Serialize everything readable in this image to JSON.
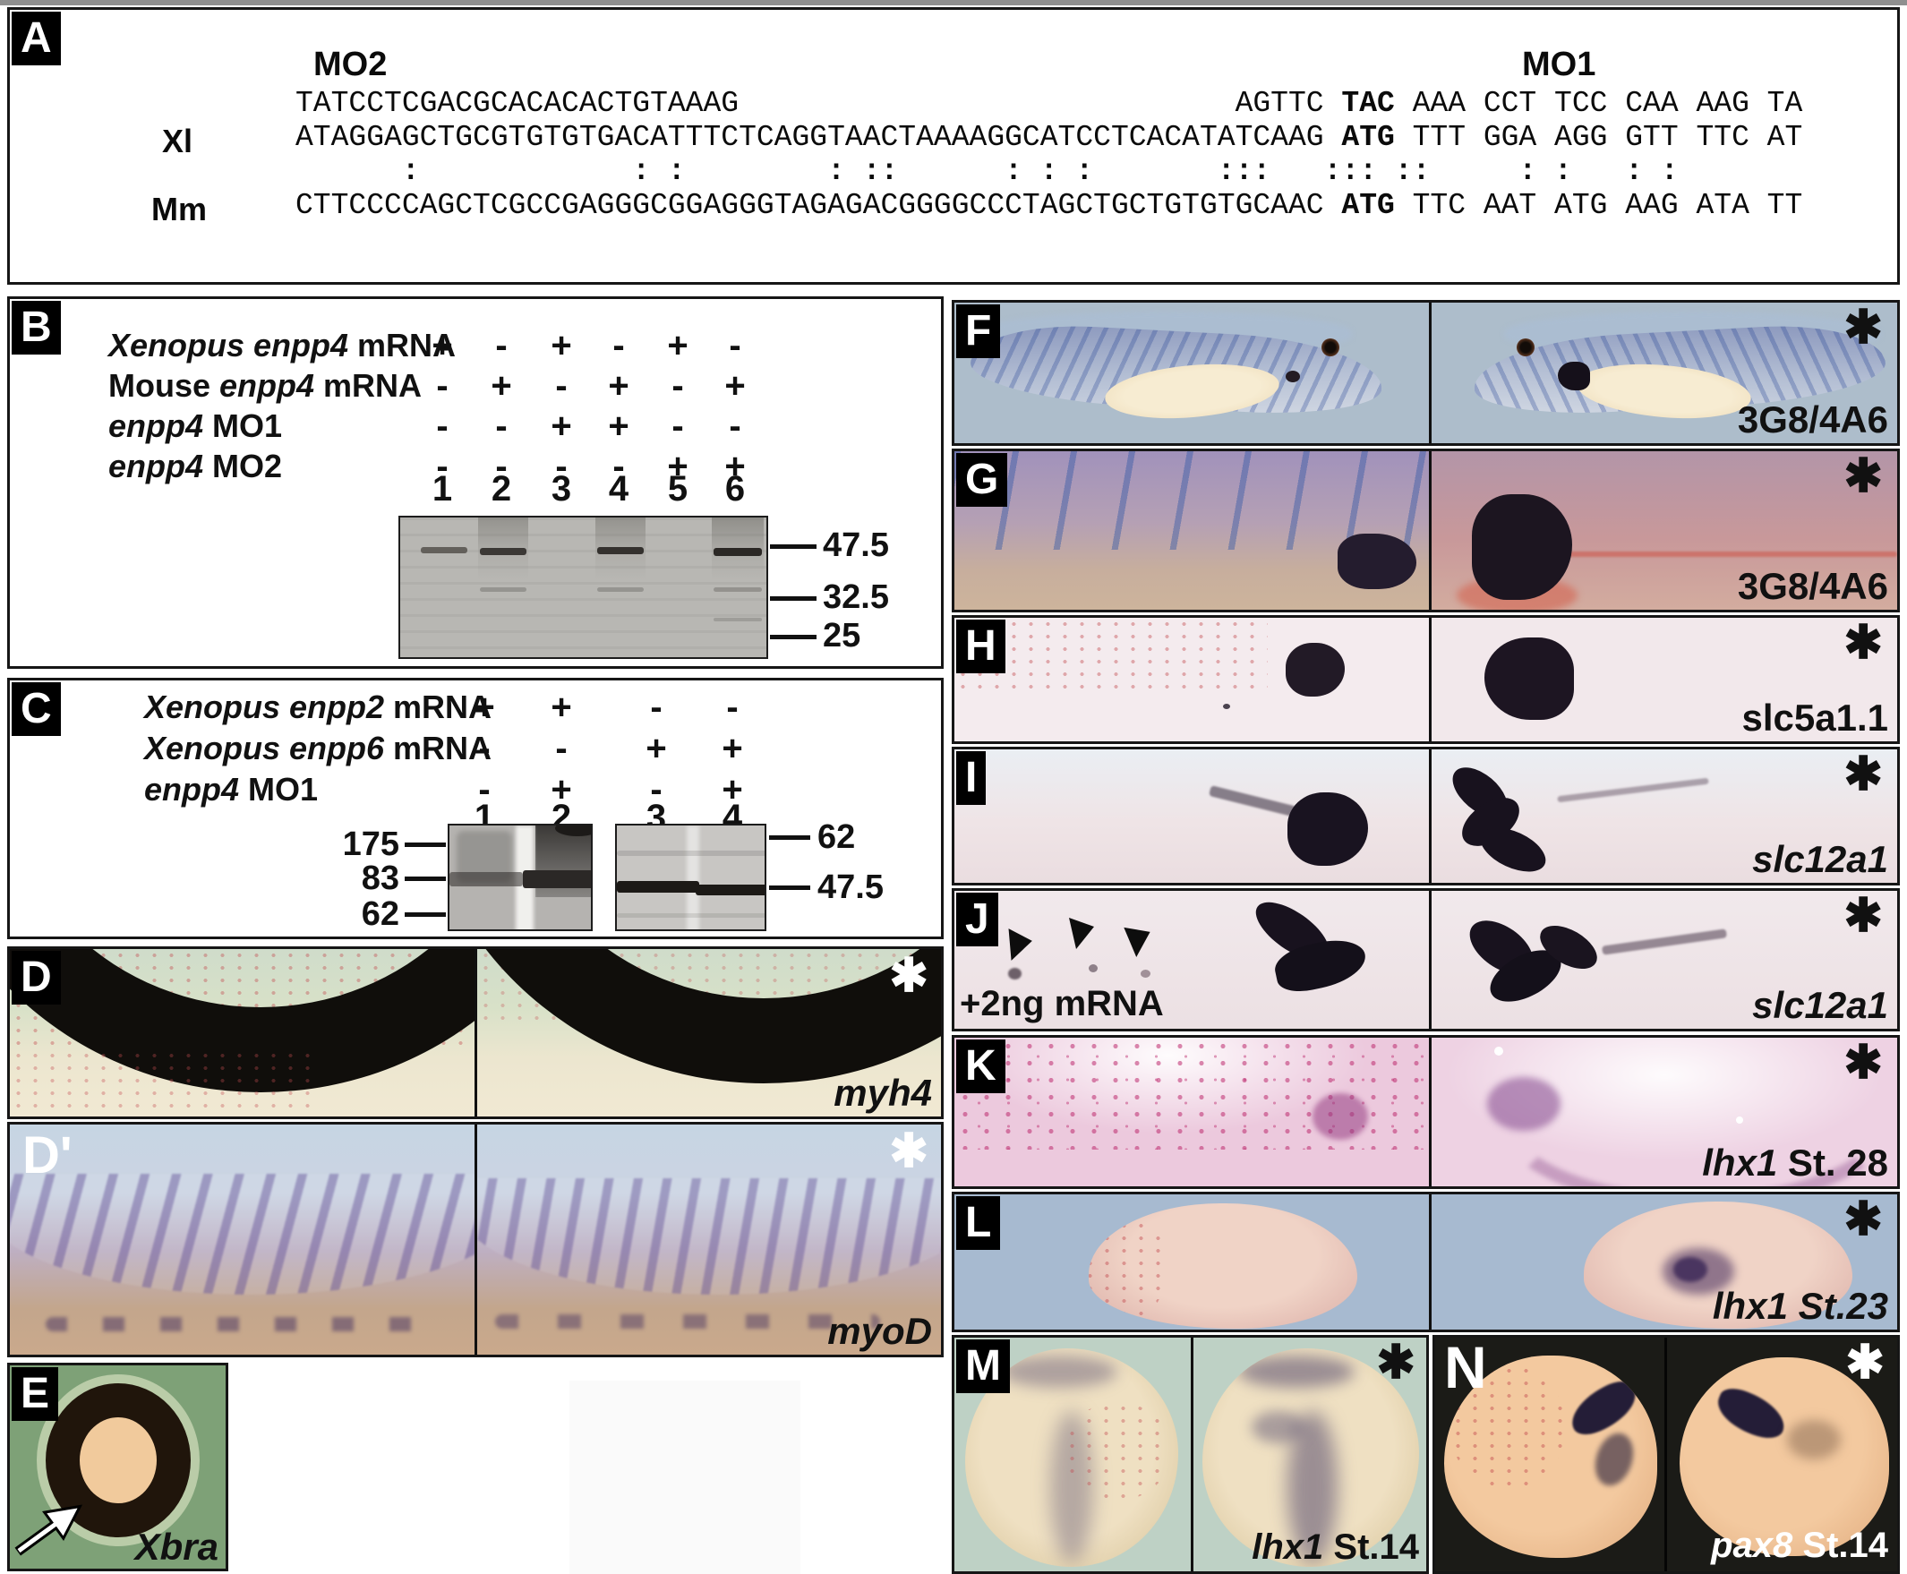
{
  "colors": {
    "stain_dark": "#1d1420",
    "speckle_magenta": "#bd2a6e",
    "gel_band": "#2b2825",
    "asterisk_black": "#111111",
    "asterisk_white": "#ffffff"
  },
  "panels": {
    "A": {
      "letter": "A",
      "mo2": "MO2",
      "mo1": "MO1",
      "xl": "Xl",
      "mm": "Mm",
      "line1": [
        {
          "t": "TATCCTCGACGCACACACTGTAAAG                            AGTTC "
        },
        {
          "t": "TAC",
          "b": true
        },
        {
          "t": " AAA CCT TCC CAA AAG TA"
        }
      ],
      "line_xl": [
        {
          "t": "ATAGGAGCTGCGTGTGTGACATTTCTCAGGTAACTAAAAGGCATCCTCACATATCAAG "
        },
        {
          "t": "ATG",
          "b": true
        },
        {
          "t": " TTT GGA AGG GTT TTC AT"
        }
      ],
      "colons": "      :            : :        : ::      : : :       :::   ::: ::     : :   : :",
      "line_mm": [
        {
          "t": "CTTCCCCAGCTCGCCGAGGGCGGAGGGTAGAGACGGGGCCCTAGCTGCTGTGTGCAAC "
        },
        {
          "t": "ATG",
          "b": true
        },
        {
          "t": " TTC AAT ATG AAG ATA TT"
        }
      ]
    },
    "B": {
      "letter": "B",
      "rows": [
        {
          "label": [
            {
              "t": "Xenopus enpp4",
              "i": true
            },
            {
              "t": " mRNA"
            }
          ],
          "values": [
            "+",
            "-",
            "+",
            "-",
            "+",
            "-"
          ]
        },
        {
          "label": [
            {
              "t": "Mouse "
            },
            {
              "t": "enpp4",
              "i": true
            },
            {
              "t": " mRNA"
            }
          ],
          "values": [
            "-",
            "+",
            "-",
            "+",
            "-",
            "+"
          ]
        },
        {
          "label": [
            {
              "t": "enpp4",
              "i": true
            },
            {
              "t": " MO1"
            }
          ],
          "values": [
            "-",
            "-",
            "+",
            "+",
            "-",
            "-"
          ]
        },
        {
          "label": [
            {
              "t": "enpp4",
              "i": true
            },
            {
              "t": " MO2"
            }
          ],
          "values": [
            "-",
            "-",
            "-",
            "-",
            "+",
            "+"
          ]
        }
      ],
      "lanes": [
        "1",
        "2",
        "3",
        "4",
        "5",
        "6"
      ],
      "markers": [
        "47.5",
        "32.5",
        "25"
      ]
    },
    "C": {
      "letter": "C",
      "rows": [
        {
          "label": [
            {
              "t": "Xenopus enpp2",
              "i": true
            },
            {
              "t": " mRNA"
            }
          ],
          "values": [
            "+",
            "+",
            "-",
            "-"
          ]
        },
        {
          "label": [
            {
              "t": "Xenopus enpp6",
              "i": true
            },
            {
              "t": " mRNA"
            }
          ],
          "values": [
            "-",
            "-",
            "+",
            "+"
          ]
        },
        {
          "label": [
            {
              "t": "enpp4",
              "i": true
            },
            {
              "t": " MO1"
            }
          ],
          "values": [
            "-",
            "+",
            "-",
            "+"
          ]
        }
      ],
      "lanes": [
        "1",
        "2",
        "3",
        "4"
      ],
      "left_markers": [
        "175",
        "83",
        "62"
      ],
      "right_markers": [
        "62",
        "47.5"
      ]
    },
    "D": {
      "letter": "D",
      "gene": [
        {
          "t": "myh4",
          "i": true
        }
      ],
      "asterisk": "✱"
    },
    "Dp": {
      "letter": "D'",
      "gene": [
        {
          "t": "myoD",
          "i": true
        }
      ],
      "asterisk": "✱"
    },
    "E": {
      "letter": "E",
      "gene": [
        {
          "t": "Xbra",
          "i": true
        }
      ]
    },
    "F": {
      "letter": "F",
      "label": [
        {
          "t": "3G8/4A6"
        }
      ],
      "asterisk": "✱"
    },
    "G": {
      "letter": "G",
      "label": [
        {
          "t": "3G8/4A6"
        }
      ],
      "asterisk": "✱"
    },
    "H": {
      "letter": "H",
      "label": [
        {
          "t": "slc5a1.1"
        }
      ],
      "asterisk": "✱"
    },
    "I": {
      "letter": "I",
      "label": [
        {
          "t": "slc12a1",
          "i": true
        }
      ],
      "asterisk": "✱"
    },
    "J": {
      "letter": "J",
      "label": [
        {
          "t": "slc12a1",
          "i": true
        }
      ],
      "note": "+2ng mRNA",
      "asterisk": "✱"
    },
    "K": {
      "letter": "K",
      "label": [
        {
          "t": "lhx1",
          "i": true
        },
        {
          "t": " St. 28"
        }
      ],
      "asterisk": "✱"
    },
    "L": {
      "letter": "L",
      "label": [
        {
          "t": "lhx1 St.23",
          "i": true
        }
      ],
      "asterisk": "✱"
    },
    "M": {
      "letter": "M",
      "label": [
        {
          "t": "lhx1",
          "i": true
        },
        {
          "t": " St.14"
        }
      ],
      "asterisk": "✱"
    },
    "N": {
      "letter": "N",
      "label": [
        {
          "t": "pax8",
          "i": true
        },
        {
          "t": "  St.14"
        }
      ],
      "asterisk": "✱"
    }
  }
}
